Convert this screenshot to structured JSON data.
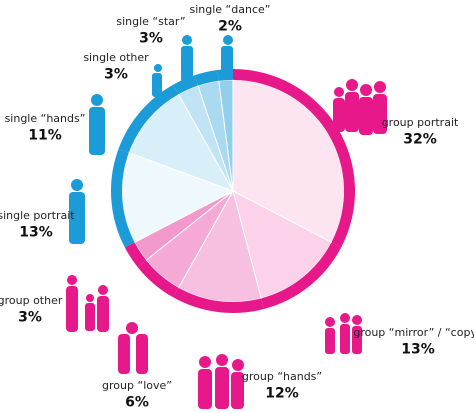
{
  "chart_data": {
    "type": "pie",
    "categories": [
      "group portrait",
      "group “mirror” / “copy”",
      "group “hands”",
      "group “love”",
      "group other",
      "single portrait",
      "single  “hands”",
      "single other",
      "single “star”",
      "single “dance”"
    ],
    "values": [
      32,
      13,
      12,
      6,
      3,
      13,
      11,
      3,
      3,
      2
    ],
    "value_labels": [
      "32%",
      "13%",
      "12%",
      "6%",
      "3%",
      "13%",
      "11%",
      "3%",
      "3%",
      "2%"
    ],
    "colors": [
      "#fde4f1",
      "#fbd2e9",
      "#f8c0e0",
      "#f5aad5",
      "#f298ca",
      "#eef8fd",
      "#d8eef9",
      "#c0e4f5",
      "#a9daf1",
      "#92cfeb"
    ],
    "ring_colors": [
      "#e6188a",
      "#e6188a",
      "#e6188a",
      "#e6188a",
      "#e6188a",
      "#1b9bd7",
      "#1b9bd7",
      "#1b9bd7",
      "#1b9bd7",
      "#1b9bd7"
    ]
  }
}
